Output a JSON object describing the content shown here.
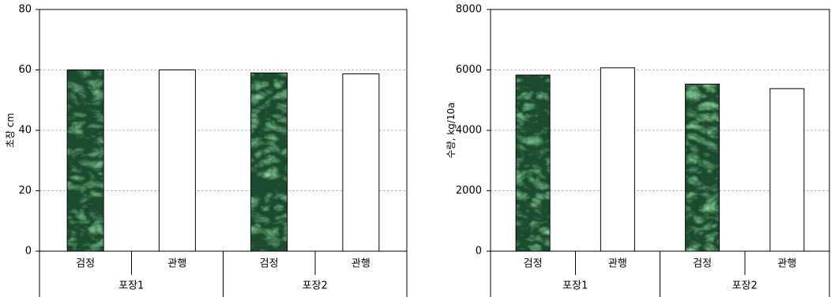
{
  "chart_data": [
    {
      "type": "bar",
      "categories": [
        "검정",
        "관행",
        "검정",
        "관행"
      ],
      "group_labels": [
        "포장1",
        "포장2"
      ],
      "values": [
        60,
        60,
        59,
        58.7
      ],
      "bar_colors": [
        "#1b4a2e",
        "#ffffff",
        "#1b4a2e",
        "#ffffff"
      ],
      "ylabel": "초장 cm",
      "ylim": [
        0,
        80
      ],
      "yticks": [
        0,
        20,
        40,
        60,
        80
      ],
      "grid": true
    },
    {
      "type": "bar",
      "categories": [
        "검정",
        "관행",
        "검정",
        "관행"
      ],
      "group_labels": [
        "포장1",
        "포장2"
      ],
      "values": [
        5830,
        6070,
        5530,
        5380
      ],
      "bar_colors": [
        "#1b4a2e",
        "#ffffff",
        "#1b4a2e",
        "#ffffff"
      ],
      "ylabel": "수량, kg/10a",
      "ylim": [
        0,
        8000
      ],
      "yticks": [
        0,
        2000,
        4000,
        6000,
        8000
      ],
      "grid": true
    }
  ]
}
